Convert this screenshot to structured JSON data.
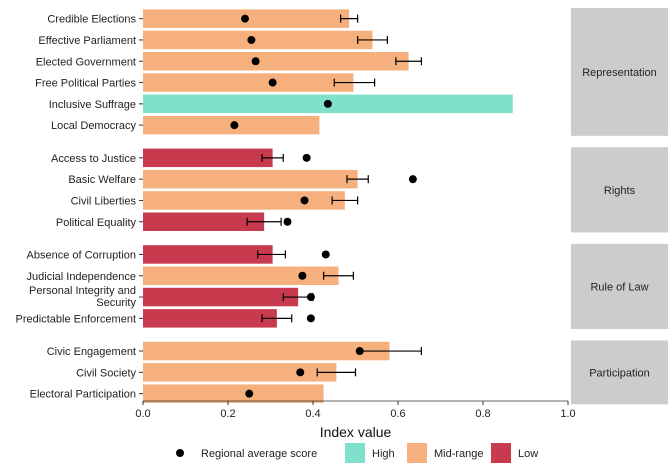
{
  "chart_data": {
    "type": "bar",
    "orientation": "horizontal",
    "xlabel": "Index value",
    "xlim": [
      0,
      1
    ],
    "xticks": [
      "0.0",
      "0.2",
      "0.4",
      "0.6",
      "0.8",
      "1.0"
    ],
    "colors": {
      "High": "#7fe0cb",
      "Mid-range": "#f6b07e",
      "Low": "#c83b4f",
      "point": "#000000",
      "facet_strip": "#cccccc"
    },
    "legend": {
      "position": "bottom",
      "point_label": "Regional average score",
      "items": [
        "High",
        "Mid-range",
        "Low"
      ]
    },
    "panels": [
      {
        "facet": "Representation",
        "rows": [
          {
            "label": "Credible Elections",
            "value": 0.485,
            "category": "Mid-range",
            "regional_avg": 0.24,
            "err": [
              0.465,
              0.505
            ]
          },
          {
            "label": "Effective Parliament",
            "value": 0.54,
            "category": "Mid-range",
            "regional_avg": 0.255,
            "err": [
              0.505,
              0.575
            ]
          },
          {
            "label": "Elected Government",
            "value": 0.625,
            "category": "Mid-range",
            "regional_avg": 0.265,
            "err": [
              0.595,
              0.655
            ]
          },
          {
            "label": "Free Political Parties",
            "value": 0.495,
            "category": "Mid-range",
            "regional_avg": 0.305,
            "err": [
              0.45,
              0.545
            ]
          },
          {
            "label": "Inclusive Suffrage",
            "value": 0.87,
            "category": "High",
            "regional_avg": 0.435,
            "err": null
          },
          {
            "label": "Local Democracy",
            "value": 0.415,
            "category": "Mid-range",
            "regional_avg": 0.215,
            "err": null
          }
        ]
      },
      {
        "facet": "Rights",
        "rows": [
          {
            "label": "Access to Justice",
            "value": 0.305,
            "category": "Low",
            "regional_avg": 0.385,
            "err": [
              0.28,
              0.33
            ]
          },
          {
            "label": "Basic Welfare",
            "value": 0.505,
            "category": "Mid-range",
            "regional_avg": 0.635,
            "err": [
              0.48,
              0.53
            ]
          },
          {
            "label": "Civil Liberties",
            "value": 0.475,
            "category": "Mid-range",
            "regional_avg": 0.38,
            "err": [
              0.445,
              0.505
            ]
          },
          {
            "label": "Political Equality",
            "value": 0.285,
            "category": "Low",
            "regional_avg": 0.34,
            "err": [
              0.245,
              0.325
            ]
          }
        ]
      },
      {
        "facet": "Rule of Law",
        "rows": [
          {
            "label": "Absence of Corruption",
            "value": 0.305,
            "category": "Low",
            "regional_avg": 0.43,
            "err": [
              0.27,
              0.335
            ]
          },
          {
            "label": "Judicial Independence",
            "value": 0.46,
            "category": "Mid-range",
            "regional_avg": 0.375,
            "err": [
              0.425,
              0.495
            ]
          },
          {
            "label": "Personal Integrity and Security",
            "value": 0.365,
            "category": "Low",
            "regional_avg": 0.395,
            "err": [
              0.33,
              0.4
            ]
          },
          {
            "label": "Predictable Enforcement",
            "value": 0.315,
            "category": "Low",
            "regional_avg": 0.395,
            "err": [
              0.28,
              0.35
            ]
          }
        ]
      },
      {
        "facet": "Participation",
        "rows": [
          {
            "label": "Civic Engagement",
            "value": 0.58,
            "category": "Mid-range",
            "regional_avg": 0.51,
            "err": [
              0.51,
              0.655
            ]
          },
          {
            "label": "Civil Society",
            "value": 0.455,
            "category": "Mid-range",
            "regional_avg": 0.37,
            "err": [
              0.41,
              0.5
            ]
          },
          {
            "label": "Electoral Participation",
            "value": 0.425,
            "category": "Mid-range",
            "regional_avg": 0.25,
            "err": null
          }
        ]
      }
    ]
  }
}
